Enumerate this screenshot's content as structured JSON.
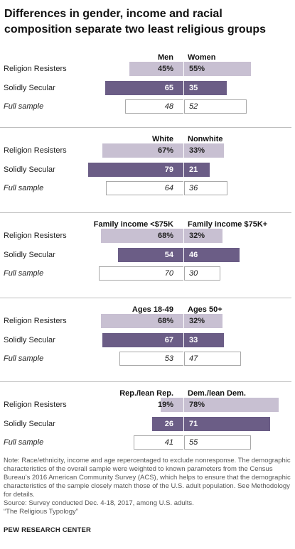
{
  "title": "Differences in gender, income and racial composition separate two least religious groups",
  "chart_data": {
    "type": "bar",
    "layout": "diverging-stacked-bars",
    "rows": [
      "Religion Resisters",
      "Solidly Secular",
      "Full sample"
    ],
    "panels": [
      {
        "left_label": "Men",
        "right_label": "Women",
        "rows": [
          {
            "label": "Religion Resisters",
            "left": 45,
            "right": 55,
            "left_text": "45%",
            "right_text": "55%"
          },
          {
            "label": "Solidly Secular",
            "left": 65,
            "right": 35,
            "left_text": "65",
            "right_text": "35"
          },
          {
            "label": "Full sample",
            "left": 48,
            "right": 52,
            "left_text": "48",
            "right_text": "52"
          }
        ]
      },
      {
        "left_label": "White",
        "right_label": "Nonwhite",
        "rows": [
          {
            "label": "Religion Resisters",
            "left": 67,
            "right": 33,
            "left_text": "67%",
            "right_text": "33%"
          },
          {
            "label": "Solidly Secular",
            "left": 79,
            "right": 21,
            "left_text": "79",
            "right_text": "21"
          },
          {
            "label": "Full sample",
            "left": 64,
            "right": 36,
            "left_text": "64",
            "right_text": "36"
          }
        ]
      },
      {
        "left_label": "Family income <$75K",
        "right_label": "Family income $75K+",
        "rows": [
          {
            "label": "Religion Resisters",
            "left": 68,
            "right": 32,
            "left_text": "68%",
            "right_text": "32%"
          },
          {
            "label": "Solidly Secular",
            "left": 54,
            "right": 46,
            "left_text": "54",
            "right_text": "46"
          },
          {
            "label": "Full sample",
            "left": 70,
            "right": 30,
            "left_text": "70",
            "right_text": "30"
          }
        ]
      },
      {
        "left_label": "Ages 18-49",
        "right_label": "Ages 50+",
        "rows": [
          {
            "label": "Religion Resisters",
            "left": 68,
            "right": 32,
            "left_text": "68%",
            "right_text": "32%"
          },
          {
            "label": "Solidly Secular",
            "left": 67,
            "right": 33,
            "left_text": "67",
            "right_text": "33"
          },
          {
            "label": "Full sample",
            "left": 53,
            "right": 47,
            "left_text": "53",
            "right_text": "47"
          }
        ]
      },
      {
        "left_label": "Rep./lean Rep.",
        "right_label": "Dem./lean Dem.",
        "rows": [
          {
            "label": "Religion Resisters",
            "left": 19,
            "right": 78,
            "left_text": "19%",
            "right_text": "78%"
          },
          {
            "label": "Solidly Secular",
            "left": 26,
            "right": 71,
            "left_text": "26",
            "right_text": "71"
          },
          {
            "label": "Full sample",
            "left": 41,
            "right": 55,
            "left_text": "41",
            "right_text": "55"
          }
        ]
      }
    ],
    "colors": {
      "religion_resisters": "#c8c0d2",
      "solidly_secular": "#6b5d86",
      "full_sample": "#ffffff",
      "full_sample_border": "#a8a8a8"
    }
  },
  "notes": [
    "Note: Race/ethnicity, income and age repercentaged to exclude nonresponse. The demographic characteristics of the overall sample were weighted to known parameters from the Census Bureau’s 2016 American Community Survey (ACS), which helps to ensure that the demographic characteristics of the sample closely match those of the U.S. adult population. See Methodology for details.",
    "Source: Survey conducted Dec. 4-18, 2017, among U.S. adults.",
    "“The Religious Typology”"
  ],
  "brand": "PEW RESEARCH CENTER"
}
